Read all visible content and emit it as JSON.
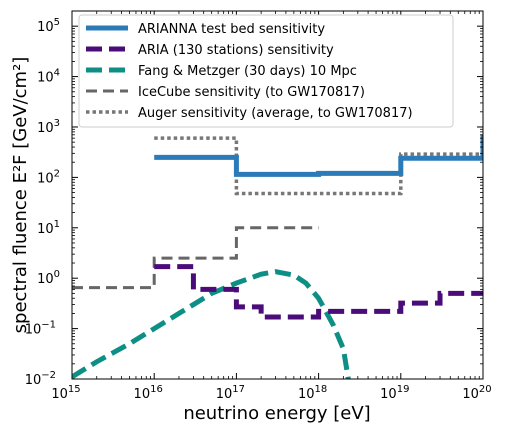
{
  "chart_data": {
    "type": "line",
    "xlabel": "neutrino energy [eV]",
    "ylabel": "spectral fluence E²F [GeV/cm²]",
    "xscale": "log",
    "yscale": "log",
    "xlim": [
      1000000000000000.0,
      1e+20
    ],
    "ylim": [
      0.01,
      200000
    ],
    "x_ticks": [
      {
        "value": 1000000000000000.0,
        "base": "10",
        "exp": "15"
      },
      {
        "value": 1e+16,
        "base": "10",
        "exp": "16"
      },
      {
        "value": 1e+17,
        "base": "10",
        "exp": "17"
      },
      {
        "value": 1e+18,
        "base": "10",
        "exp": "18"
      },
      {
        "value": 1e+19,
        "base": "10",
        "exp": "19"
      },
      {
        "value": 1e+20,
        "base": "10",
        "exp": "20"
      }
    ],
    "y_ticks": [
      {
        "value": 0.01,
        "base": "10",
        "exp": "−2"
      },
      {
        "value": 0.1,
        "base": "10",
        "exp": "−1"
      },
      {
        "value": 1,
        "base": "10",
        "exp": "0"
      },
      {
        "value": 10,
        "base": "10",
        "exp": "1"
      },
      {
        "value": 100,
        "base": "10",
        "exp": "2"
      },
      {
        "value": 1000,
        "base": "10",
        "exp": "3"
      },
      {
        "value": 10000,
        "base": "10",
        "exp": "4"
      },
      {
        "value": 100000,
        "base": "10",
        "exp": "5"
      }
    ],
    "legend_position": "top-left",
    "series": [
      {
        "name": "ARIANNA test bed sensitivity",
        "color": "#2b7bb9",
        "style": "solid",
        "points": [
          [
            1e+16,
            250
          ],
          [
            1e+17,
            250
          ],
          [
            1e+17,
            115
          ],
          [
            1e+18,
            115
          ],
          [
            1e+18,
            120
          ],
          [
            1e+19,
            120
          ],
          [
            1e+19,
            240
          ],
          [
            1e+20,
            240
          ],
          [
            1e+20,
            700
          ]
        ]
      },
      {
        "name": "ARIA (130 stations) sensitivity",
        "color": "#4b0c7a",
        "style": "dashed",
        "points": [
          [
            1e+16,
            1.7
          ],
          [
            3e+16,
            1.7
          ],
          [
            3e+16,
            0.6
          ],
          [
            1e+17,
            0.6
          ],
          [
            1e+17,
            0.27
          ],
          [
            2e+17,
            0.27
          ],
          [
            2e+17,
            0.17
          ],
          [
            1e+18,
            0.17
          ],
          [
            1e+18,
            0.22
          ],
          [
            1e+19,
            0.22
          ],
          [
            1e+19,
            0.32
          ],
          [
            3e+19,
            0.32
          ],
          [
            3e+19,
            0.5
          ],
          [
            1e+20,
            0.5
          ]
        ]
      },
      {
        "name": "Fang & Metzger (30 days) 10 Mpc",
        "color": "#0e8f86",
        "style": "dashed",
        "points": [
          [
            1000000000000000.0,
            0.011
          ],
          [
            2000000000000000.0,
            0.022
          ],
          [
            5000000000000000.0,
            0.05
          ],
          [
            1e+16,
            0.1
          ],
          [
            2e+16,
            0.2
          ],
          [
            5e+16,
            0.5
          ],
          [
            1e+17,
            0.8
          ],
          [
            2e+17,
            1.2
          ],
          [
            3e+17,
            1.35
          ],
          [
            5e+17,
            1.15
          ],
          [
            7e+17,
            0.8
          ],
          [
            1e+18,
            0.4
          ],
          [
            1.5e+18,
            0.12
          ],
          [
            2e+18,
            0.04
          ],
          [
            2.3e+18,
            0.01
          ]
        ]
      },
      {
        "name": "IceCube sensitivity (to GW170817)",
        "color": "#666666",
        "style": "dashed",
        "points": [
          [
            1000000000000000.0,
            0.65
          ],
          [
            1e+16,
            0.65
          ],
          [
            1e+16,
            2.5
          ],
          [
            1e+17,
            2.5
          ],
          [
            1e+17,
            10
          ],
          [
            1e+18,
            10
          ]
        ]
      },
      {
        "name": "Auger sensitivity (average, to GW170817)",
        "color": "#777777",
        "style": "dotted",
        "points": [
          [
            1e+16,
            600
          ],
          [
            1e+17,
            600
          ],
          [
            1e+17,
            48
          ],
          [
            1e+19,
            48
          ],
          [
            1e+19,
            290
          ],
          [
            1e+20,
            290
          ]
        ]
      }
    ]
  }
}
